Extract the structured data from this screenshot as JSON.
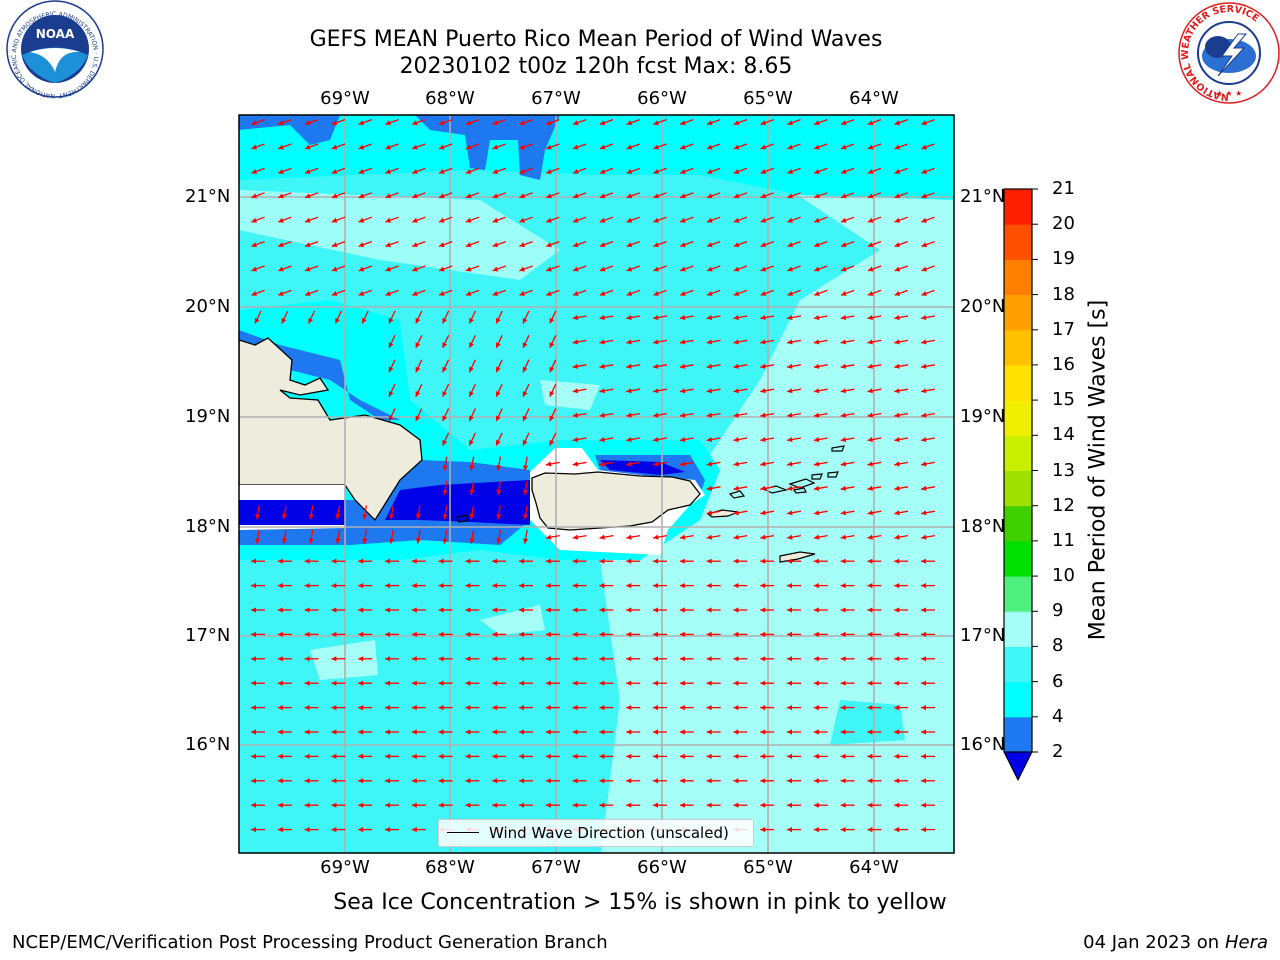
{
  "title": {
    "line1": "GEFS MEAN Puerto Rico Mean Period of Wind Waves",
    "line2": "20230102 t00z 120h fcst   Max: 8.65"
  },
  "map": {
    "lon_labels": [
      "69°W",
      "68°W",
      "67°W",
      "66°W",
      "65°W",
      "64°W"
    ],
    "lat_labels": [
      "21°N",
      "20°N",
      "19°N",
      "18°N",
      "17°N",
      "16°N"
    ],
    "legend_label": "Wind Wave Direction (unscaled)",
    "arrow_color": "#ff0000",
    "land_color": "#eeecdc",
    "grid_color": "#b0b0b0"
  },
  "colorbar": {
    "title": "Mean Period of Wind Waves [s]",
    "ticks": [
      "2",
      "4",
      "6",
      "8",
      "9",
      "10",
      "11",
      "12",
      "13",
      "14",
      "15",
      "16",
      "17",
      "18",
      "19",
      "20",
      "21"
    ],
    "colors": [
      "#0000e6",
      "#1e78f0",
      "#00ffff",
      "#40f5f5",
      "#a6fff6",
      "#50f080",
      "#00e000",
      "#40d000",
      "#a0e000",
      "#c8f000",
      "#f0f000",
      "#ffe000",
      "#ffc000",
      "#ffa000",
      "#ff8000",
      "#ff5000",
      "#ff2000",
      "#ff0000"
    ]
  },
  "footnote": "Sea Ice Concentration > 15% is shown in pink to yellow",
  "credit": "NCEP/EMC/Verification Post Processing Product Generation Branch",
  "date": {
    "text": "04 Jan 2023 on",
    "machine": "Hera"
  },
  "logos": {
    "noaa_text": "NOAA",
    "noaa_ring": "NATIONAL OCEANIC AND ATMOSPHERIC ADMINISTRATION · U.S. DEPARTMENT OF COMMERCE",
    "nws_ring": "NATIONAL WEATHER SERVICE"
  }
}
